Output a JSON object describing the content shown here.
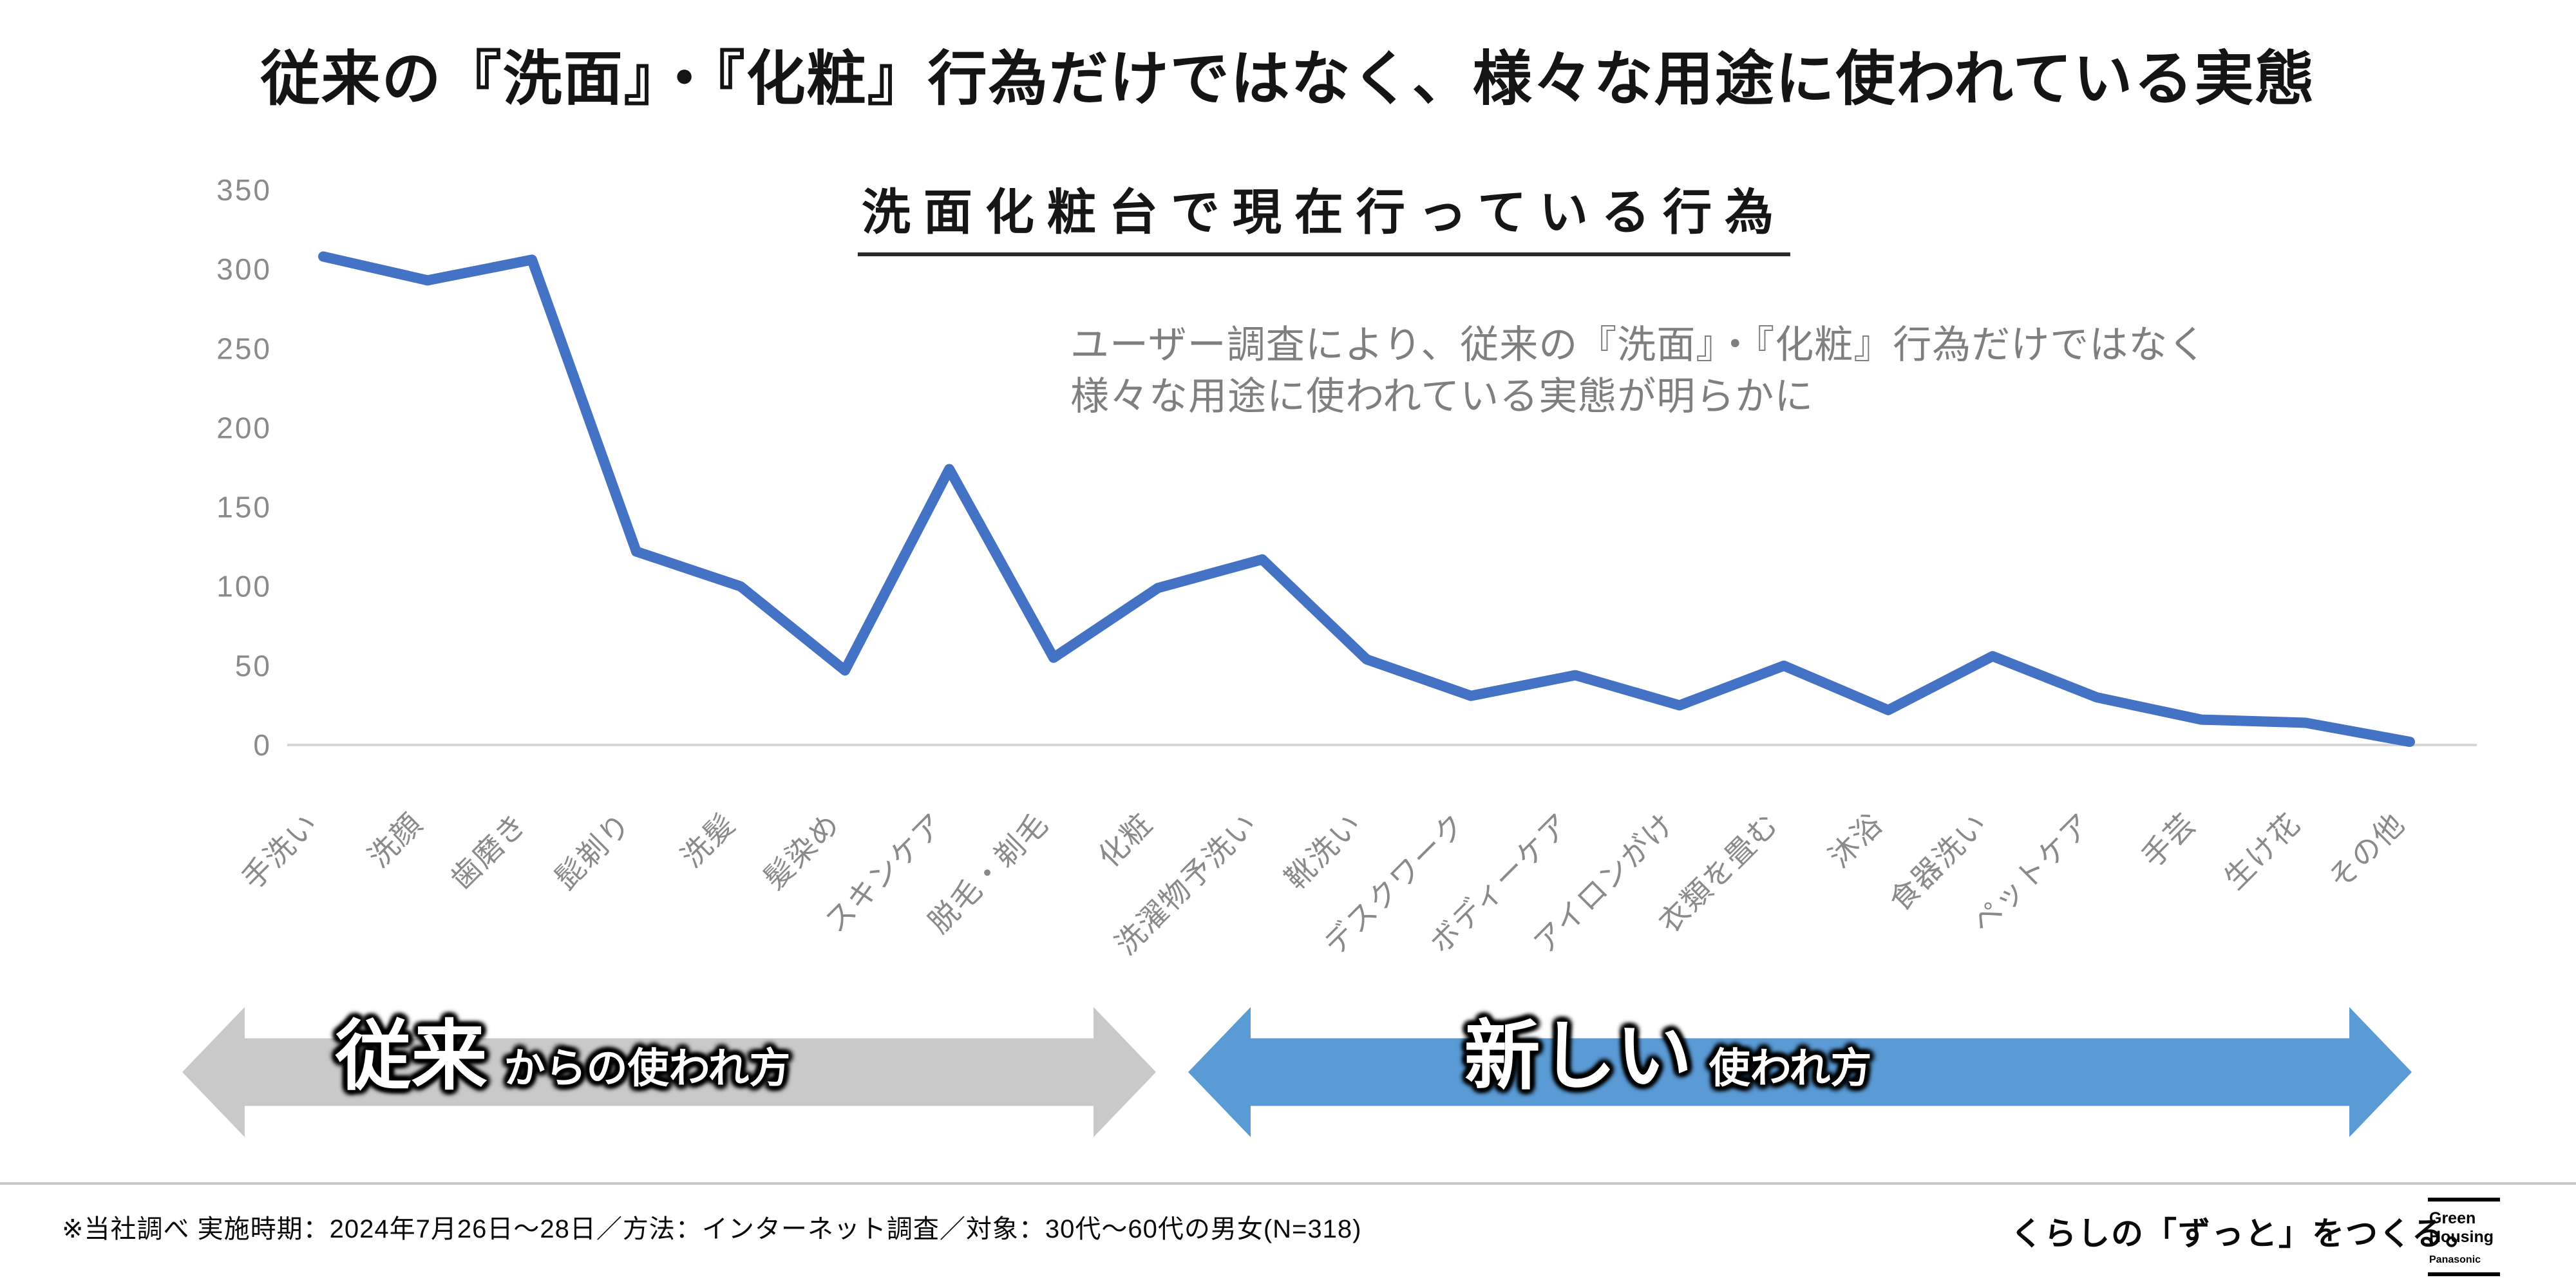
{
  "page": {
    "title": "従来の『洗面』・『化粧』行為だけではなく、様々な用途に使われている実態"
  },
  "chart": {
    "title": "洗面化粧台で現在行っている行為",
    "annotation": "ユーザー調査により、従来の『洗面』・『化粧』行為だけではなく\n様々な用途に使われている実態が明らかに"
  },
  "chart_data": {
    "type": "line",
    "title": "洗面化粧台で現在行っている行為",
    "categories": [
      "手洗い",
      "洗顔",
      "歯磨き",
      "髭剃り",
      "洗髪",
      "髪染め",
      "スキンケア",
      "脱毛・剃毛",
      "化粧",
      "洗濯物予洗い",
      "靴洗い",
      "デスクワーク",
      "ボディーケア",
      "アイロンがけ",
      "衣類を畳む",
      "沐浴",
      "食器洗い",
      "ペットケア",
      "手芸",
      "生け花",
      "その他"
    ],
    "values": [
      308,
      293,
      306,
      122,
      100,
      47,
      174,
      55,
      99,
      117,
      54,
      31,
      44,
      25,
      50,
      22,
      56,
      30,
      16,
      14,
      2
    ],
    "xlabel": "",
    "ylabel": "",
    "ylim": [
      0,
      350
    ],
    "yticks": [
      0,
      50,
      100,
      150,
      200,
      250,
      300,
      350
    ],
    "grid": false,
    "legend_position": "none",
    "line_color": "#4472C4",
    "axis_color": "#d6d6d6",
    "tick_label_color": "#8a8a8a"
  },
  "arrows": {
    "traditional": {
      "emphasis": "従来",
      "rest": "からの使われ方",
      "color": "#c9c9c9"
    },
    "new": {
      "emphasis": "新しい",
      "rest": "使われ方",
      "color": "#5b9bd5"
    }
  },
  "footer": {
    "note": "※当社調べ  実施時期：2024年7月26日～28日／方法：インターネット調査／対象：30代～60代の男女(N=318)",
    "tagline": "くらしの「ずっと」をつくる。",
    "logo": {
      "line1": "Green",
      "line2": "Housing",
      "line3": "Panasonic"
    }
  }
}
